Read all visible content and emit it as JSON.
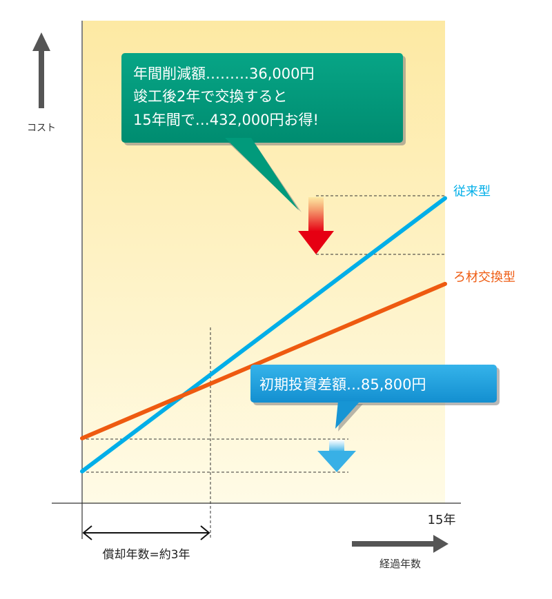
{
  "chart_data": {
    "type": "line",
    "title": "",
    "ylabel": "コスト",
    "xlabel": "経過年数",
    "x_tick_end": "15年",
    "xlim": [
      0,
      15
    ],
    "ylim": [
      0,
      200
    ],
    "series": [
      {
        "name": "従来型",
        "color": "#00aee8",
        "x": [
          0,
          15
        ],
        "y": [
          13.2,
          126.4
        ]
      },
      {
        "name": "ろ材交換型",
        "color": "#ee5a10",
        "x": [
          0,
          15
        ],
        "y": [
          26.9,
          90.9
        ]
      }
    ],
    "crossover_x": 3,
    "annotations": {
      "savings_line1": "年間削減額………36,000円",
      "savings_line2": "竣工後2年で交換すると",
      "savings_line3": "15年間で…432,000円お得!",
      "initial_diff": "初期投資差額…85,800円",
      "payback": "償却年数=約3年"
    },
    "colors": {
      "bg_top": "#fde9a3",
      "bg_bottom": "#fffbe6",
      "callout_green": "#019a7b",
      "callout_blue": "#1ea0dc",
      "axis": "#333333",
      "arrow_gray": "#555555"
    }
  }
}
